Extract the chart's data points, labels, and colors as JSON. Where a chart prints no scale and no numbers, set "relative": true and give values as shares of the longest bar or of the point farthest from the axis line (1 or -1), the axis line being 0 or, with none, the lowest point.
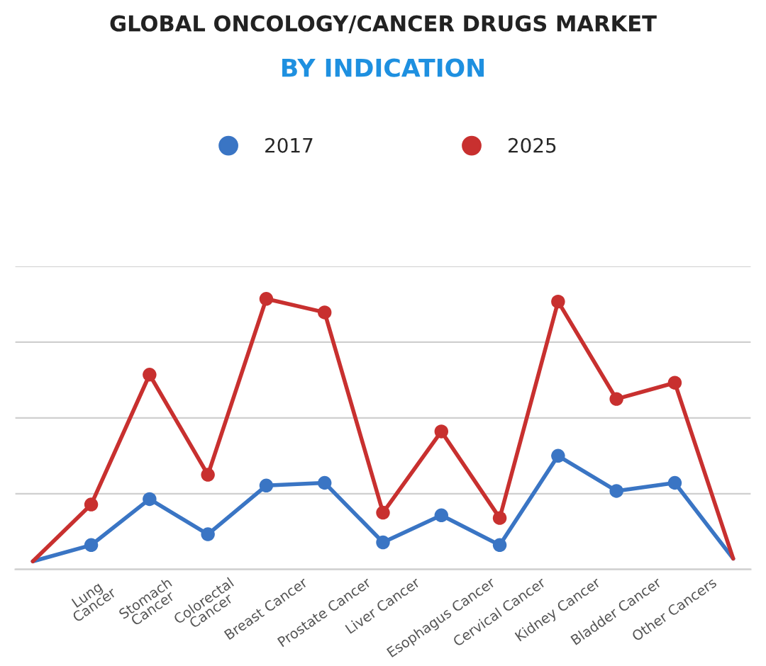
{
  "chart_data": {
    "type": "line",
    "title": "GLOBAL ONCOLOGY/CANCER DRUGS MARKET",
    "subtitle": "BY INDICATION",
    "categories": [
      null,
      "Lung\nCancer",
      "Stomach\nCancer",
      "Colorectal\nCancer",
      "Breast Cancer",
      "Prostate Cancer",
      "Liver Cancer",
      "Esophagus Cancer",
      "Cervical Cancer",
      "Kidney Cancer",
      "Bladder Cancer",
      "Other Cancers",
      null
    ],
    "relative": true,
    "grid": "y",
    "legend": "top",
    "marker": "circle",
    "line_style": "solid",
    "series": [
      {
        "name": "2017",
        "color": "#3a75c4",
        "values": [
          0.03,
          0.09,
          0.26,
          0.13,
          0.31,
          0.32,
          0.1,
          0.2,
          0.09,
          0.42,
          0.29,
          0.32,
          0.04
        ]
      },
      {
        "name": "2025",
        "color": "#c8302f",
        "values": [
          0.03,
          0.24,
          0.72,
          0.35,
          1,
          0.95,
          0.21,
          0.51,
          0.19,
          0.99,
          0.63,
          0.69,
          0.04
        ]
      }
    ]
  }
}
